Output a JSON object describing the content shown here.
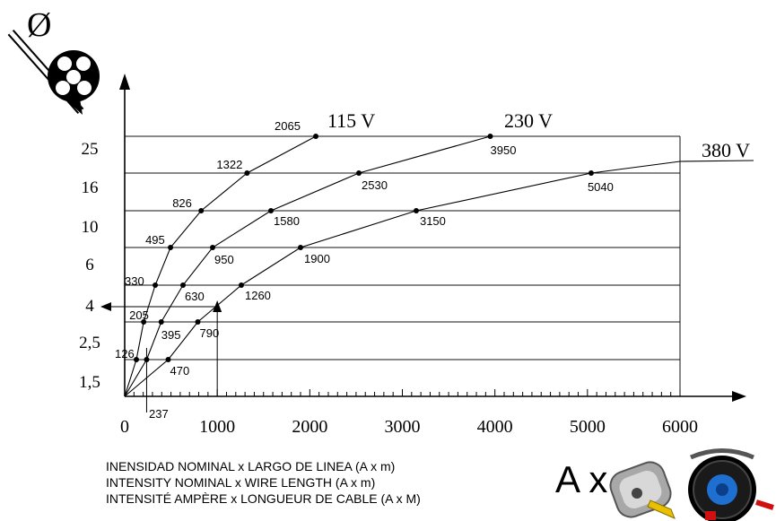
{
  "chart_data": {
    "type": "line",
    "xlim": [
      0,
      6000
    ],
    "x_ticks": [
      "0",
      "1000",
      "2000",
      "3000",
      "4000",
      "5000",
      "6000"
    ],
    "y_categories": [
      "1,5",
      "2,5",
      "4",
      "6",
      "10",
      "16",
      "25"
    ],
    "y_symbol": "Ø",
    "extra_x_marker": "237",
    "grid": true,
    "series": [
      {
        "name": "115 V",
        "points": [
          {
            "section": "1,5",
            "value": 126,
            "label": "126"
          },
          {
            "section": "2,5",
            "value": 205,
            "label": "205"
          },
          {
            "section": "4",
            "value": 330,
            "label": "330"
          },
          {
            "section": "6",
            "value": 495,
            "label": "495"
          },
          {
            "section": "10",
            "value": 826,
            "label": "826"
          },
          {
            "section": "16",
            "value": 1322,
            "label": "1322"
          },
          {
            "section": "25",
            "value": 2065,
            "label": "2065"
          }
        ]
      },
      {
        "name": "230 V",
        "points": [
          {
            "section": "1,5",
            "value": 237,
            "label": ""
          },
          {
            "section": "2,5",
            "value": 395,
            "label": "395"
          },
          {
            "section": "4",
            "value": 630,
            "label": "630"
          },
          {
            "section": "6",
            "value": 950,
            "label": "950"
          },
          {
            "section": "10",
            "value": 1580,
            "label": "1580"
          },
          {
            "section": "16",
            "value": 2530,
            "label": "2530"
          },
          {
            "section": "25",
            "value": 3950,
            "label": "3950"
          }
        ]
      },
      {
        "name": "380 V",
        "points": [
          {
            "section": "1,5",
            "value": 470,
            "label": "470"
          },
          {
            "section": "2,5",
            "value": 790,
            "label": "790"
          },
          {
            "section": "4",
            "value": 1260,
            "label": "1260"
          },
          {
            "section": "6",
            "value": 1900,
            "label": "1900"
          },
          {
            "section": "10",
            "value": 3150,
            "label": "3150"
          },
          {
            "section": "16",
            "value": 5040,
            "label": "5040"
          }
        ]
      }
    ]
  },
  "captions": {
    "line1": "INENSIDAD NOMINAL x LARGO DE LINEA (A x m)",
    "line2": "INTENSITY NOMINAL x WIRE LENGTH  (A x m)",
    "line3": "INTENSITÉ  AMPÈRE x LONGUEUR DE CABLE (A x M)",
    "ax_label": "A x"
  },
  "icons": {
    "cable_section": "cable-cross-section-icon",
    "tape": "measuring-tape-icon",
    "reel": "cable-reel-icon"
  }
}
